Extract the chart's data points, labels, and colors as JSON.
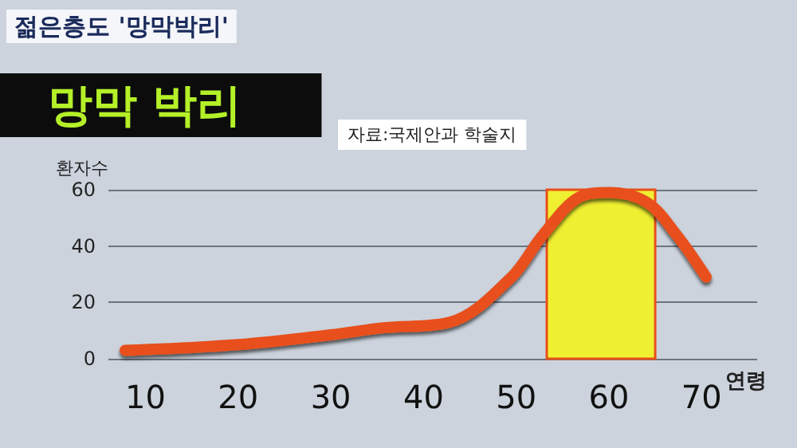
{
  "chart_data": {
    "type": "line",
    "title": "망막 박리",
    "subtitle": "젊은층도 '망막박리'",
    "annotations": [
      "자료:국제안과 학술지"
    ],
    "xlabel": "연령",
    "ylabel": "환자수",
    "x": [
      7.8,
      20,
      30,
      35.7,
      42.9,
      49.5,
      52.9,
      56.9,
      60,
      64.1,
      67.3,
      70.5
    ],
    "series": [
      {
        "color": "#e8501a",
        "values": [
          3,
          5,
          8.5,
          11,
          13,
          29,
          44,
          57.5,
          59,
          55.5,
          44,
          29
        ]
      }
    ],
    "xlim": [
      6,
      76
    ],
    "xticks": [
      10,
      20,
      30,
      40,
      50,
      60,
      70
    ],
    "ylim": [
      0,
      60
    ],
    "yticks": [
      0,
      20,
      40,
      60
    ],
    "grid": "y",
    "line_style": "solid",
    "bands": [
      {
        "axis": "x",
        "from": 53.3,
        "to": 65,
        "color": "#f0f032"
      }
    ]
  }
}
